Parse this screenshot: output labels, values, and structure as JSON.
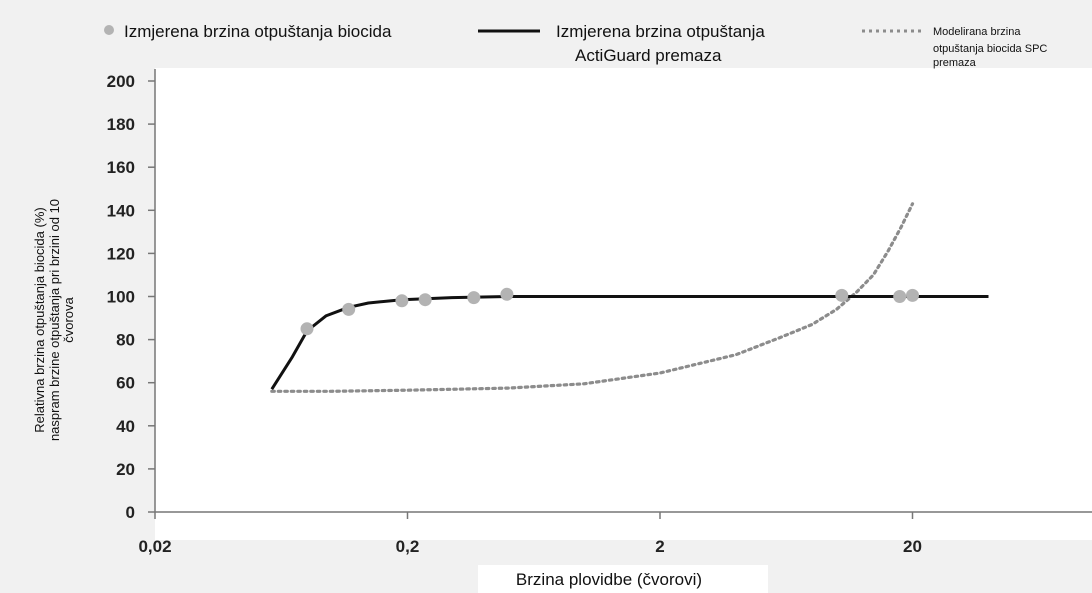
{
  "chart_data": {
    "type": "line",
    "title": "",
    "xlabel": "Brzina plovidbe (čvorovi)",
    "ylabel_lines": [
      "Relativna brzina otpuštanja biocida  (%)",
      "naspram brzine otpuštanja pri brzini od 10",
      "čvorova"
    ],
    "x_scale": "log",
    "xlim": [
      0.02,
      200
    ],
    "ylim": [
      0,
      200
    ],
    "y_ticks": [
      "0",
      "20",
      "40",
      "60",
      "80",
      "100",
      "120",
      "140",
      "160",
      "180",
      "200"
    ],
    "x_ticks": [
      {
        "value": 0.02,
        "label": "0,02"
      },
      {
        "value": 0.2,
        "label": "0,2"
      },
      {
        "value": 2,
        "label": "2"
      },
      {
        "value": 20,
        "label": "20"
      }
    ],
    "legend_position": "top",
    "series": [
      {
        "name": "Izmjerena brzina otpuštanja biocida",
        "kind": "scatter",
        "color": "#b3b3b3",
        "x": [
          0.08,
          0.117,
          0.19,
          0.235,
          0.366,
          0.495,
          10.5,
          17.8,
          20.0
        ],
        "y": [
          85,
          94,
          98,
          98.5,
          99.5,
          101,
          100.5,
          100,
          100.5
        ]
      },
      {
        "name_lines": [
          "Izmjerena brzina otpuštanja",
          "ActiGuard premaza"
        ],
        "kind": "line",
        "color": "#111111",
        "x": [
          0.058,
          0.07,
          0.08,
          0.095,
          0.117,
          0.14,
          0.19,
          0.3,
          0.5,
          1,
          5,
          10,
          20,
          40
        ],
        "y": [
          57,
          72,
          84,
          91,
          95,
          97,
          98.5,
          99.5,
          100,
          100,
          100,
          100,
          100,
          100
        ]
      },
      {
        "name_lines": [
          "Modelirana brzina",
          "otpuštanja biocida SPC",
          "premaza"
        ],
        "kind": "dotted-line",
        "color": "#8c8c8c",
        "x": [
          0.058,
          0.1,
          0.2,
          0.5,
          1,
          2,
          4,
          6,
          8,
          10,
          12,
          14,
          16,
          18,
          20
        ],
        "y": [
          56,
          56,
          56.5,
          57.5,
          59.5,
          64.5,
          73,
          81,
          87,
          94,
          102,
          110,
          121,
          132,
          143
        ]
      }
    ]
  }
}
